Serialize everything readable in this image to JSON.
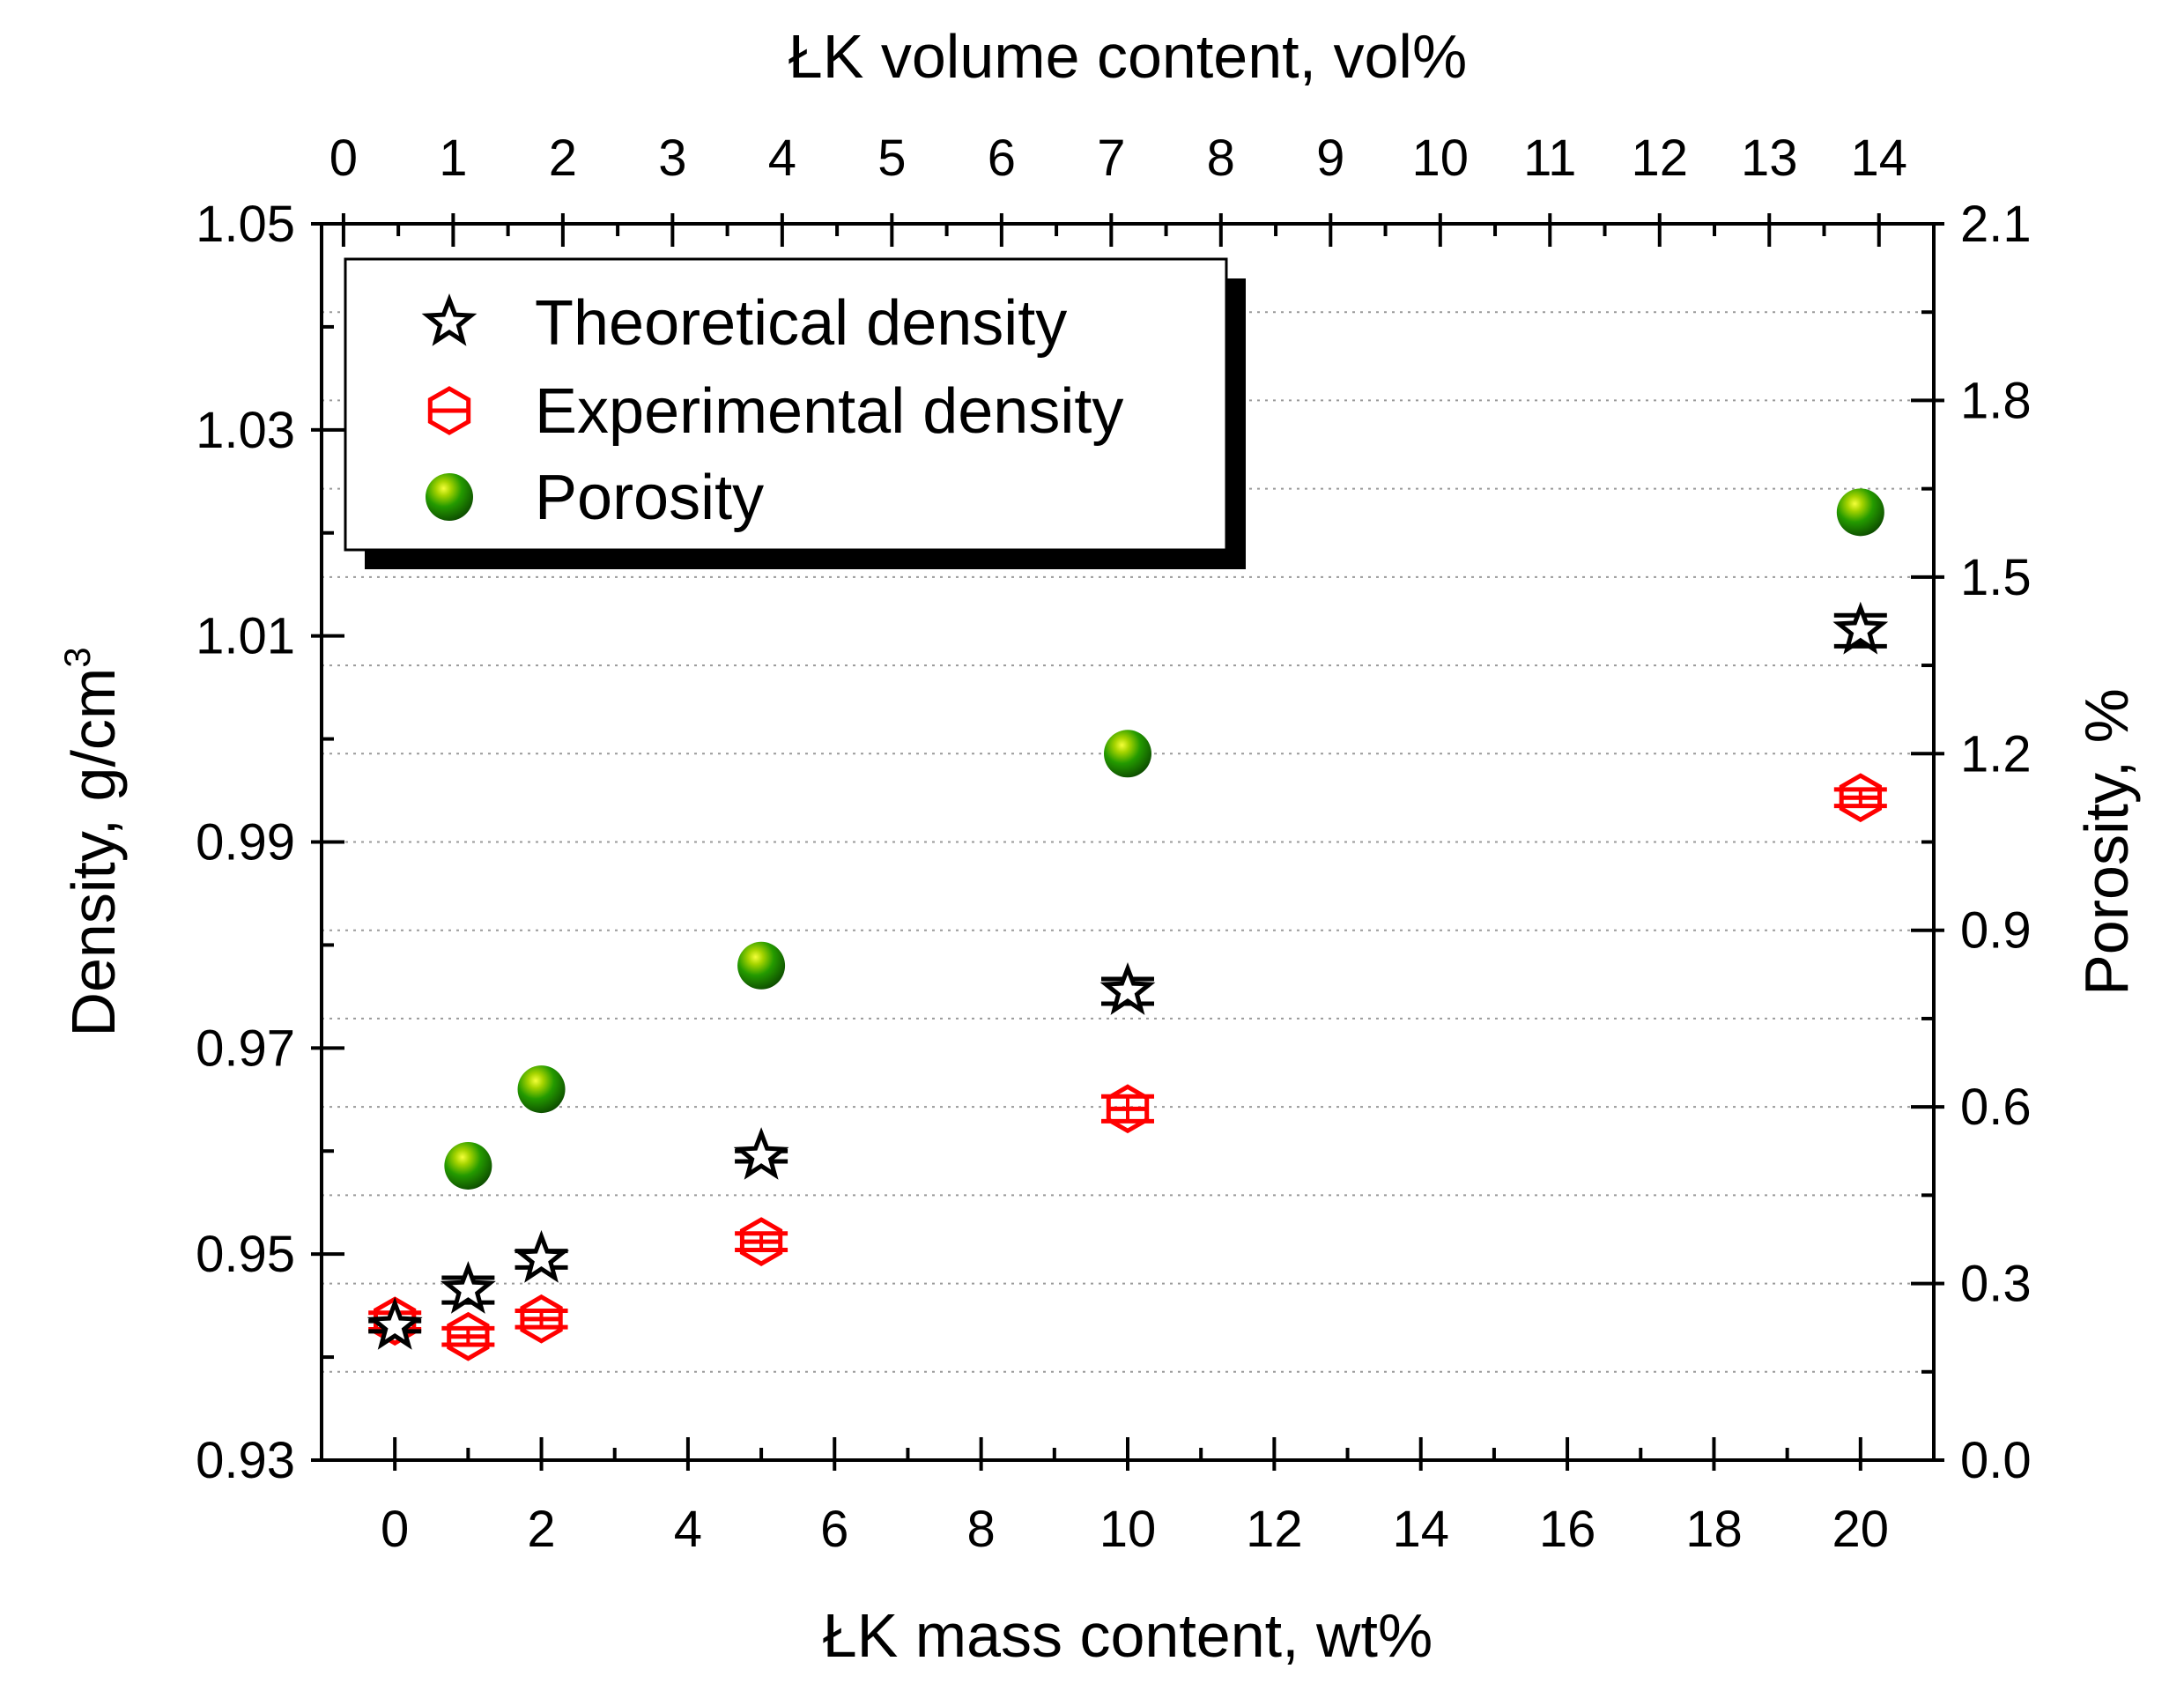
{
  "chart_data": {
    "type": "scatter",
    "title": "",
    "xlabel": "ŁK mass content, wt%",
    "x2label": "ŁK volume content, vol%",
    "ylabel": "Density, g/cm",
    "ylabel_superscript": "3",
    "y2label": "Porosity, %",
    "xlim": [
      -1,
      21
    ],
    "ylim": [
      0.93,
      1.05
    ],
    "y2lim": [
      0.0,
      2.1
    ],
    "x2lim": [
      -0.2,
      14.5
    ],
    "x_ticks": [
      "0",
      "2",
      "4",
      "6",
      "8",
      "10",
      "12",
      "14",
      "16",
      "18",
      "20"
    ],
    "x_tick_values": [
      0,
      2,
      4,
      6,
      8,
      10,
      12,
      14,
      16,
      18,
      20
    ],
    "y_ticks": [
      "0.93",
      "0.95",
      "0.97",
      "0.99",
      "1.01",
      "1.03",
      "1.05"
    ],
    "y_tick_values": [
      0.93,
      0.95,
      0.97,
      0.99,
      1.01,
      1.03,
      1.05
    ],
    "y2_ticks": [
      "0.0",
      "0.3",
      "0.6",
      "0.9",
      "1.2",
      "1.5",
      "1.8",
      "2.1"
    ],
    "y2_tick_values": [
      0.0,
      0.3,
      0.6,
      0.9,
      1.2,
      1.5,
      1.8,
      2.1
    ],
    "x2_ticks": [
      "0",
      "1",
      "2",
      "3",
      "4",
      "5",
      "6",
      "7",
      "8",
      "9",
      "10",
      "11",
      "12",
      "13",
      "14"
    ],
    "x2_tick_values": [
      0,
      1,
      2,
      3,
      4,
      5,
      6,
      7,
      8,
      9,
      10,
      11,
      12,
      13,
      14
    ],
    "grid": "horizontal dotted",
    "legend_position": "top-left",
    "series": [
      {
        "name": "Theoretical density",
        "axis": "left",
        "marker": "star",
        "color": "#000000",
        "x": [
          0,
          1,
          2,
          5,
          10,
          20
        ],
        "y": [
          0.943,
          0.9465,
          0.9495,
          0.9595,
          0.9755,
          1.0105
        ],
        "err": [
          0.0005,
          0.0012,
          0.0008,
          0.0005,
          0.0012,
          0.0015
        ]
      },
      {
        "name": "Experimental density",
        "axis": "left",
        "marker": "hexagon-bar",
        "color": "#ff0000",
        "x": [
          0,
          1,
          2,
          5,
          10,
          20
        ],
        "y": [
          0.9435,
          0.942,
          0.9437,
          0.9512,
          0.9641,
          0.9943
        ],
        "err": [
          0.0008,
          0.0008,
          0.0008,
          0.0008,
          0.0012,
          0.0008
        ]
      },
      {
        "name": "Porosity",
        "axis": "right",
        "marker": "sphere",
        "color": "#1e8c00",
        "x": [
          1,
          2,
          5,
          10,
          20
        ],
        "y": [
          0.5,
          0.63,
          0.84,
          1.2,
          1.61
        ]
      }
    ]
  }
}
